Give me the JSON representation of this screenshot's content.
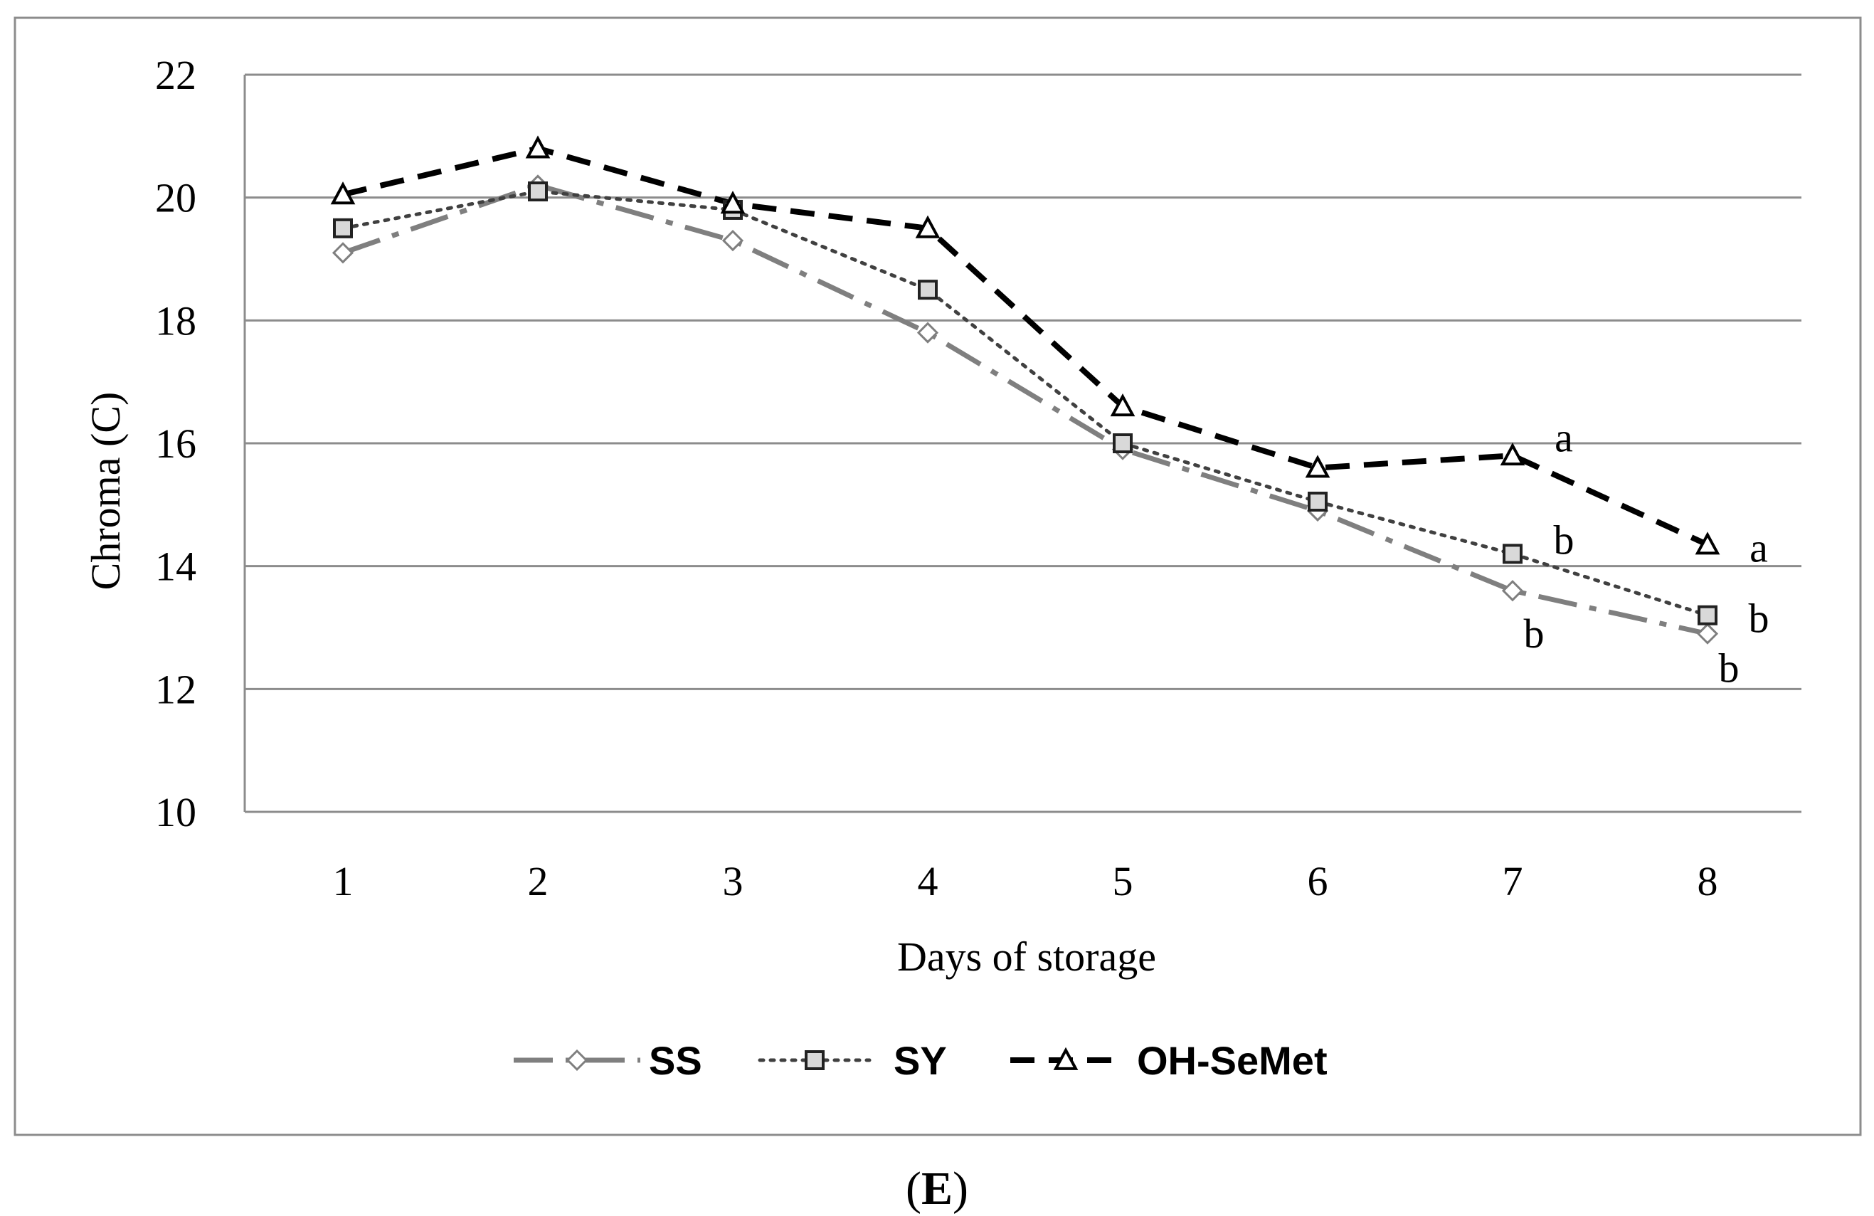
{
  "panel_label": {
    "open": "(",
    "letter": "E",
    "close": ")"
  },
  "chart_data": {
    "type": "line",
    "xlabel": "Days of storage",
    "ylabel": "Chroma (C)",
    "categories": [
      "1",
      "2",
      "3",
      "4",
      "5",
      "6",
      "7",
      "8"
    ],
    "y_ticks": [
      "10",
      "12",
      "14",
      "16",
      "18",
      "20",
      "22"
    ],
    "ylim": [
      10,
      22
    ],
    "grid": true,
    "legend_position": "bottom",
    "series": [
      {
        "name": "SS",
        "marker": "diamond",
        "line_style": "dash-dot",
        "color": "#7f7f7f",
        "values": [
          19.1,
          20.2,
          19.3,
          17.8,
          15.9,
          14.9,
          13.6,
          12.9
        ]
      },
      {
        "name": "SY",
        "marker": "square",
        "line_style": "dotted",
        "color": "#404040",
        "values": [
          19.5,
          20.1,
          19.8,
          18.5,
          16.0,
          15.05,
          14.2,
          13.2
        ]
      },
      {
        "name": "OH-SeMet",
        "marker": "triangle",
        "line_style": "dashed",
        "color": "#000000",
        "values": [
          20.05,
          20.8,
          19.9,
          19.5,
          16.6,
          15.6,
          15.8,
          14.35
        ]
      }
    ],
    "annotations": [
      {
        "text": "a",
        "series": "OH-SeMet",
        "x": "7"
      },
      {
        "text": "b",
        "series": "SY",
        "x": "7"
      },
      {
        "text": "b",
        "series": "SS",
        "x": "7"
      },
      {
        "text": "a",
        "series": "OH-SeMet",
        "x": "8"
      },
      {
        "text": "b",
        "series": "SY",
        "x": "8"
      },
      {
        "text": "b",
        "series": "SS",
        "x": "8"
      }
    ]
  }
}
